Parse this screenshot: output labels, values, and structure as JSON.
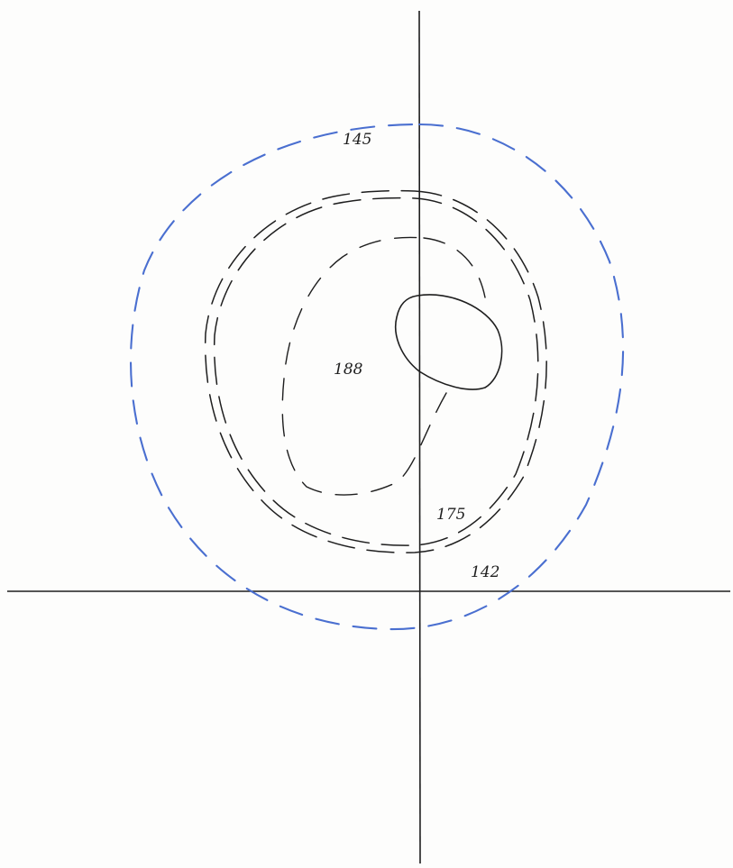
{
  "colors": {
    "ink": "#1e1e1e",
    "outer_contour": "#4a6fd0",
    "background": "#fdfdfc"
  },
  "labels": {
    "outer": "145",
    "inner": "188",
    "middle": "175",
    "bottom": "142"
  }
}
